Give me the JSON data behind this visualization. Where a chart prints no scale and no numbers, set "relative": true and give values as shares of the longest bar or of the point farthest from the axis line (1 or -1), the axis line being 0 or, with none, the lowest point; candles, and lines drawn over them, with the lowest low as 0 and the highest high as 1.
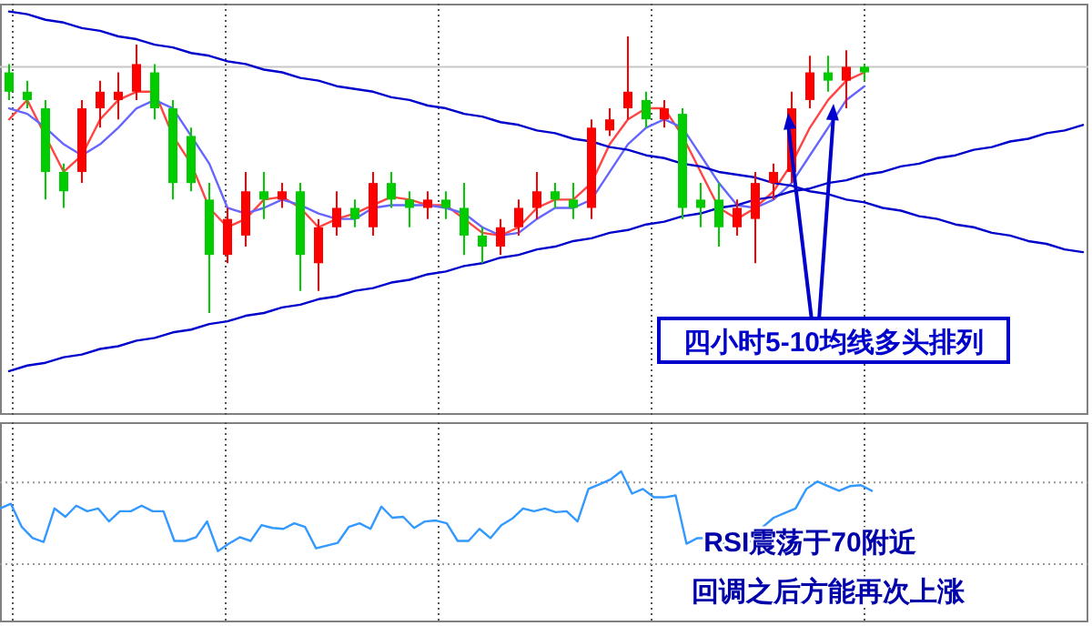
{
  "chart_data": [
    {
      "type": "candlestick",
      "relative": true,
      "grid": "x",
      "categories": [
        null,
        null,
        null,
        null,
        null,
        null,
        null,
        null,
        null,
        null,
        null,
        null,
        null,
        null,
        null,
        null,
        null,
        null,
        null,
        null,
        null,
        null,
        null,
        null,
        null,
        null,
        null,
        null,
        null,
        null,
        null,
        null,
        null,
        null,
        null,
        null,
        null,
        null,
        null,
        null,
        null,
        null,
        null,
        null,
        null,
        null,
        null,
        null,
        null,
        null,
        null,
        null,
        null,
        null,
        null,
        null,
        null,
        null,
        null,
        null
      ],
      "ohlc": [
        [
          0.87,
          0.9,
          0.77,
          0.8
        ],
        [
          0.8,
          0.84,
          0.74,
          0.77
        ],
        [
          0.74,
          0.77,
          0.41,
          0.51
        ],
        [
          0.51,
          0.54,
          0.38,
          0.44
        ],
        [
          0.51,
          0.77,
          0.47,
          0.74
        ],
        [
          0.74,
          0.84,
          0.67,
          0.8
        ],
        [
          0.77,
          0.87,
          0.7,
          0.8
        ],
        [
          0.8,
          0.97,
          0.77,
          0.9
        ],
        [
          0.87,
          0.9,
          0.7,
          0.74
        ],
        [
          0.74,
          0.77,
          0.41,
          0.47
        ],
        [
          0.64,
          0.67,
          0.44,
          0.47
        ],
        [
          0.41,
          0.47,
          0,
          0.21
        ],
        [
          0.21,
          0.38,
          0.18,
          0.34
        ],
        [
          0.28,
          0.51,
          0.24,
          0.44
        ],
        [
          0.44,
          0.51,
          0.34,
          0.41
        ],
        [
          0.41,
          0.47,
          0.38,
          0.44
        ],
        [
          0.44,
          0.47,
          0.08,
          0.21
        ],
        [
          0.18,
          0.34,
          0.08,
          0.31
        ],
        [
          0.31,
          0.44,
          0.28,
          0.38
        ],
        [
          0.38,
          0.41,
          0.31,
          0.34
        ],
        [
          0.31,
          0.51,
          0.28,
          0.47
        ],
        [
          0.47,
          0.51,
          0.38,
          0.41
        ],
        [
          0.41,
          0.44,
          0.31,
          0.38
        ],
        [
          0.38,
          0.44,
          0.34,
          0.41
        ],
        [
          0.41,
          0.44,
          0.34,
          0.38
        ],
        [
          0.38,
          0.47,
          0.21,
          0.28
        ],
        [
          0.28,
          0.31,
          0.18,
          0.24
        ],
        [
          0.24,
          0.34,
          0.21,
          0.31
        ],
        [
          0.31,
          0.41,
          0.28,
          0.38
        ],
        [
          0.38,
          0.51,
          0.34,
          0.44
        ],
        [
          0.44,
          0.47,
          0.38,
          0.41
        ],
        [
          0.41,
          0.47,
          0.34,
          0.38
        ],
        [
          0.38,
          0.7,
          0.34,
          0.67
        ],
        [
          0.66,
          0.74,
          0.64,
          0.7
        ],
        [
          0.74,
          1,
          0.7,
          0.8
        ],
        [
          0.77,
          0.8,
          0.67,
          0.7
        ],
        [
          0.7,
          0.77,
          0.67,
          0.74
        ],
        [
          0.72,
          0.74,
          0.34,
          0.38
        ],
        [
          0.41,
          0.47,
          0.31,
          0.38
        ],
        [
          0.41,
          0.47,
          0.24,
          0.31
        ],
        [
          0.31,
          0.41,
          0.28,
          0.38
        ],
        [
          0.34,
          0.51,
          0.18,
          0.47
        ],
        [
          0.47,
          0.54,
          0.41,
          0.51
        ],
        [
          0.51,
          0.8,
          0.47,
          0.74
        ],
        [
          0.77,
          0.93,
          0.74,
          0.87
        ],
        [
          0.87,
          0.93,
          0.8,
          0.84
        ],
        [
          0.84,
          0.95,
          0.74,
          0.89
        ],
        [
          0.89,
          0.9,
          0.84,
          0.87
        ],
        null,
        null,
        null,
        null,
        null,
        null,
        null,
        null,
        null,
        null,
        null,
        null
      ],
      "colors": [
        "#00cc00",
        "#00cc00",
        "#00cc00",
        "#00cc00",
        "#ff0000",
        "#ff0000",
        "#ff0000",
        "#ff0000",
        "#00cc00",
        "#00cc00",
        "#00cc00",
        "#00cc00",
        "#ff0000",
        "#ff0000",
        "#00cc00",
        "#ff0000",
        "#00cc00",
        "#ff0000",
        "#ff0000",
        "#00cc00",
        "#ff0000",
        "#00cc00",
        "#00cc00",
        "#ff0000",
        "#00cc00",
        "#00cc00",
        "#00cc00",
        "#ff0000",
        "#ff0000",
        "#ff0000",
        "#00cc00",
        "#00cc00",
        "#ff0000",
        "#ff0000",
        "#ff0000",
        "#00cc00",
        "#ff0000",
        "#00cc00",
        "#00cc00",
        "#00cc00",
        "#ff0000",
        "#ff0000",
        "#ff0000",
        "#ff0000",
        "#ff0000",
        "#00cc00",
        "#ff0000",
        "#00cc00",
        null,
        null,
        null,
        null,
        null,
        null,
        null,
        null,
        null,
        null,
        null,
        null
      ],
      "series": [
        {
          "type": "line",
          "color": "#ff4444",
          "values": [
            0.7,
            0.77,
            0.64,
            0.51,
            0.57,
            0.7,
            0.77,
            0.8,
            0.8,
            0.64,
            0.54,
            0.38,
            0.31,
            0.34,
            0.41,
            0.42,
            0.38,
            0.31,
            0.34,
            0.36,
            0.39,
            0.42,
            0.41,
            0.39,
            0.39,
            0.34,
            0.29,
            0.28,
            0.31,
            0.38,
            0.41,
            0.41,
            0.47,
            0.61,
            0.7,
            0.74,
            0.74,
            0.64,
            0.51,
            0.38,
            0.34,
            0.38,
            0.44,
            0.54,
            0.67,
            0.77,
            0.84,
            0.87,
            null,
            null,
            null,
            null,
            null,
            null,
            null,
            null,
            null,
            null,
            null,
            null
          ]
        },
        {
          "type": "line",
          "color": "#6666ff",
          "values": [
            0.74,
            0.72,
            0.67,
            0.61,
            0.57,
            0.61,
            0.67,
            0.74,
            0.77,
            0.74,
            0.64,
            0.54,
            0.38,
            0.36,
            0.38,
            0.41,
            0.39,
            0.36,
            0.34,
            0.34,
            0.38,
            0.39,
            0.39,
            0.39,
            0.38,
            0.36,
            0.31,
            0.28,
            0.29,
            0.34,
            0.38,
            0.38,
            0.41,
            0.51,
            0.61,
            0.67,
            0.7,
            0.67,
            0.57,
            0.47,
            0.39,
            0.38,
            0.41,
            0.47,
            0.57,
            0.67,
            0.77,
            0.82,
            null,
            null,
            null,
            null,
            null,
            null,
            null,
            null,
            null,
            null,
            null,
            null
          ]
        },
        {
          "type": "line",
          "color": "#0000cc",
          "values": [
            1.09,
            1.08,
            1.06,
            1.05,
            1.03,
            1.02,
            1.0,
            0.99,
            0.97,
            0.96,
            0.94,
            0.93,
            0.91,
            0.9,
            0.88,
            0.87,
            0.85,
            0.84,
            0.82,
            0.81,
            0.8,
            0.78,
            0.77,
            0.75,
            0.74,
            0.72,
            0.71,
            0.69,
            0.68,
            0.66,
            0.65,
            0.63,
            0.62,
            0.6,
            0.59,
            0.57,
            0.56,
            0.54,
            0.53,
            0.51,
            0.5,
            0.49,
            0.47,
            0.46,
            0.44,
            0.43,
            0.41,
            0.4,
            0.38,
            0.37,
            0.35,
            0.34,
            0.32,
            0.31,
            0.29,
            0.28,
            0.26,
            0.25,
            0.23,
            0.22
          ]
        },
        {
          "type": "line",
          "color": "#0000cc",
          "values": [
            -0.21,
            -0.19,
            -0.18,
            -0.16,
            -0.15,
            -0.13,
            -0.12,
            -0.1,
            -0.09,
            -0.07,
            -0.06,
            -0.04,
            -0.03,
            -0.01,
            0.0,
            0.02,
            0.03,
            0.05,
            0.06,
            0.08,
            0.09,
            0.11,
            0.12,
            0.14,
            0.15,
            0.17,
            0.18,
            0.2,
            0.21,
            0.23,
            0.24,
            0.26,
            0.27,
            0.29,
            0.3,
            0.32,
            0.33,
            0.35,
            0.36,
            0.38,
            0.39,
            0.41,
            0.42,
            0.44,
            0.45,
            0.47,
            0.48,
            0.5,
            0.51,
            0.53,
            0.54,
            0.56,
            0.57,
            0.59,
            0.6,
            0.62,
            0.63,
            0.65,
            0.66,
            0.68
          ]
        }
      ],
      "ref_lines": [
        {
          "axis": "y",
          "value": 0.89,
          "color": "#c8c8c8",
          "line_style": "solid"
        }
      ],
      "annotations": [
        "四小时5-10均线多头排列"
      ]
    },
    {
      "type": "line",
      "relative": true,
      "grid": "x",
      "categories": [
        null,
        null,
        null,
        null,
        null,
        null,
        null,
        null,
        null,
        null,
        null,
        null,
        null,
        null,
        null,
        null,
        null,
        null,
        null,
        null,
        null,
        null,
        null,
        null,
        null,
        null,
        null,
        null,
        null,
        null,
        null,
        null,
        null,
        null,
        null,
        null,
        null,
        null,
        null,
        null,
        null,
        null,
        null,
        null,
        null,
        null,
        null,
        null,
        null,
        null,
        null,
        null,
        null,
        null,
        null,
        null,
        null,
        null,
        null,
        null,
        null,
        null,
        null,
        null,
        null,
        null,
        null,
        null,
        null,
        null,
        null,
        null,
        null,
        null,
        null,
        null,
        null,
        null,
        null,
        null,
        null
      ],
      "series": [
        {
          "color": "#3399ff",
          "values": [
            0.6,
            0.65,
            0.4,
            0.28,
            0.24,
            0.6,
            0.51,
            0.63,
            0.57,
            0.6,
            0.46,
            0.57,
            0.57,
            0.63,
            0.57,
            0.57,
            0.25,
            0.25,
            0.29,
            0.46,
            0.14,
            0.22,
            0.29,
            0.25,
            0.42,
            0.39,
            0.38,
            0.44,
            0.4,
            0.17,
            0.2,
            0.23,
            0.4,
            0.44,
            0.38,
            0.62,
            0.5,
            0.51,
            0.39,
            0.46,
            0.47,
            0.44,
            0.25,
            0.25,
            0.38,
            0.28,
            0.42,
            0.49,
            0.6,
            0.57,
            0.6,
            0.56,
            0.57,
            0.46,
            0.81,
            0.86,
            0.91,
            1,
            0.76,
            0.81,
            0.72,
            0.72,
            0.74,
            0.22,
            0.28,
            0.28,
            0.17,
            0.29,
            0.22,
            0.25,
            0.4,
            0.5,
            0.55,
            0.6,
            0.81,
            0.89,
            0.84,
            0.79,
            0.84,
            0.85,
            0.79
          ]
        }
      ],
      "ref_lines": [
        {
          "axis": "y",
          "value": 0.88,
          "color": "#999999",
          "line_style": "dotted"
        },
        {
          "axis": "y",
          "value": 0,
          "color": "#999999",
          "line_style": "dotted"
        }
      ],
      "annotations": [
        "RSI震荡于70附近",
        "回调之后方能再次上涨"
      ]
    }
  ]
}
